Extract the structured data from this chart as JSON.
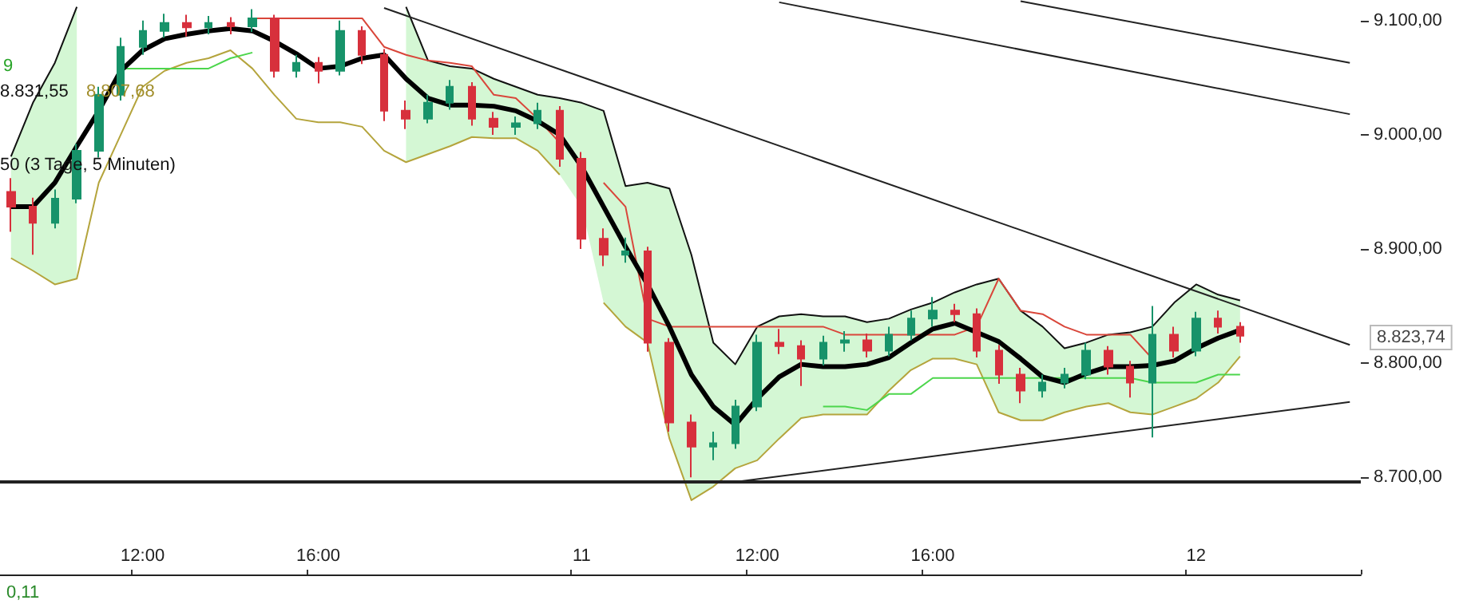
{
  "chart_data": {
    "type": "candlestick",
    "categories": [
      null,
      null,
      null,
      null,
      null,
      null,
      "12:00",
      null,
      null,
      null,
      null,
      null,
      null,
      null,
      "16:00",
      null,
      null,
      null,
      null,
      null,
      null,
      null,
      null,
      null,
      null,
      null,
      "11",
      null,
      null,
      null,
      null,
      null,
      null,
      null,
      "12:00",
      null,
      null,
      null,
      null,
      null,
      null,
      null,
      "16:00",
      null,
      null,
      null,
      null,
      null,
      null,
      null,
      null,
      null,
      null,
      null,
      "12",
      null,
      null,
      null,
      null,
      null,
      null,
      null
    ],
    "ohlc": [
      [
        8950,
        8962,
        8915,
        8937
      ],
      [
        8937,
        8945,
        8895,
        8923
      ],
      [
        8923,
        8952,
        8918,
        8944
      ],
      [
        8944,
        8992,
        8940,
        8986
      ],
      [
        8986,
        9042,
        8980,
        9035
      ],
      [
        9035,
        9085,
        9030,
        9077
      ],
      [
        9077,
        9100,
        9070,
        9091
      ],
      [
        9091,
        9106,
        9085,
        9098
      ],
      [
        9098,
        9105,
        9086,
        9094
      ],
      [
        9094,
        9104,
        9088,
        9098
      ],
      [
        9098,
        9103,
        9088,
        9095
      ],
      [
        9095,
        9110,
        9090,
        9102
      ],
      [
        9102,
        9105,
        9050,
        9056
      ],
      [
        9056,
        9070,
        9050,
        9063
      ],
      [
        9063,
        9068,
        9045,
        9056
      ],
      [
        9056,
        9100,
        9052,
        9091
      ],
      [
        9091,
        9095,
        9062,
        9070
      ],
      [
        9070,
        9075,
        9012,
        9021
      ],
      [
        9021,
        9030,
        9005,
        9014
      ],
      [
        9014,
        9035,
        9010,
        9028
      ],
      [
        9028,
        9048,
        9022,
        9042
      ],
      [
        9042,
        9046,
        9008,
        9014
      ],
      [
        9014,
        9020,
        9000,
        9007
      ],
      [
        9007,
        9016,
        9000,
        9010
      ],
      [
        9010,
        9028,
        9005,
        9021
      ],
      [
        9021,
        9025,
        8972,
        8979
      ],
      [
        8979,
        8985,
        8900,
        8909
      ],
      [
        8909,
        8918,
        8885,
        8895
      ],
      [
        8895,
        8910,
        8888,
        8898
      ],
      [
        8898,
        8902,
        8810,
        8818
      ],
      [
        8818,
        8822,
        8740,
        8748
      ],
      [
        8748,
        8755,
        8700,
        8727
      ],
      [
        8727,
        8740,
        8715,
        8730
      ],
      [
        8730,
        8768,
        8725,
        8762
      ],
      [
        8762,
        8825,
        8758,
        8818
      ],
      [
        8818,
        8830,
        8808,
        8815
      ],
      [
        8815,
        8820,
        8780,
        8804
      ],
      [
        8804,
        8824,
        8798,
        8818
      ],
      [
        8818,
        8828,
        8810,
        8820
      ],
      [
        8820,
        8826,
        8805,
        8811
      ],
      [
        8811,
        8832,
        8806,
        8825
      ],
      [
        8825,
        8846,
        8820,
        8839
      ],
      [
        8839,
        8858,
        8832,
        8846
      ],
      [
        8846,
        8852,
        8836,
        8843
      ],
      [
        8843,
        8848,
        8805,
        8811
      ],
      [
        8811,
        8816,
        8782,
        8790
      ],
      [
        8790,
        8796,
        8765,
        8776
      ],
      [
        8776,
        8790,
        8770,
        8783
      ],
      [
        8783,
        8796,
        8778,
        8790
      ],
      [
        8790,
        8818,
        8786,
        8811
      ],
      [
        8811,
        8815,
        8790,
        8797
      ],
      [
        8797,
        8802,
        8770,
        8783
      ],
      [
        8783,
        8850,
        8735,
        8825
      ],
      [
        8825,
        8832,
        8805,
        8811
      ],
      [
        8811,
        8845,
        8806,
        8839
      ],
      [
        8839,
        8846,
        8826,
        8832
      ],
      [
        8832,
        8836,
        8818,
        8824
      ],
      null,
      null,
      null,
      null,
      null
    ],
    "colors": [
      "#d7303c",
      "#d7303c",
      "#17936a",
      "#17936a",
      "#17936a",
      "#17936a",
      "#17936a",
      "#17936a",
      "#d7303c",
      "#17936a",
      "#d7303c",
      "#17936a",
      "#d7303c",
      "#17936a",
      "#d7303c",
      "#17936a",
      "#d7303c",
      "#d7303c",
      "#d7303c",
      "#17936a",
      "#17936a",
      "#d7303c",
      "#d7303c",
      "#17936a",
      "#17936a",
      "#d7303c",
      "#d7303c",
      "#d7303c",
      "#17936a",
      "#d7303c",
      "#d7303c",
      "#d7303c",
      "#17936a",
      "#17936a",
      "#17936a",
      "#d7303c",
      "#d7303c",
      "#17936a",
      "#17936a",
      "#d7303c",
      "#17936a",
      "#17936a",
      "#17936a",
      "#d7303c",
      "#d7303c",
      "#d7303c",
      "#d7303c",
      "#17936a",
      "#17936a",
      "#17936a",
      "#d7303c",
      "#d7303c",
      "#17936a",
      "#d7303c",
      "#17936a",
      "#d7303c",
      "#d7303c",
      null,
      null,
      null,
      null,
      null
    ],
    "series": [
      {
        "type": "line",
        "color": "#000000",
        "values": [
          8937,
          8937,
          8958,
          8990,
          9021,
          9056,
          9074,
          9084,
          9088,
          9091,
          9093,
          9091,
          9082,
          9071,
          9058,
          9060,
          9067,
          9070,
          9049,
          9032,
          9026,
          9026,
          9025,
          9021,
          9012,
          9000,
          8972,
          8937,
          8902,
          8869,
          8832,
          8790,
          8762,
          8746,
          8769,
          8788,
          8799,
          8797,
          8797,
          8799,
          8805,
          8818,
          8830,
          8835,
          8827,
          8819,
          8804,
          8788,
          8783,
          8791,
          8797,
          8797,
          8798,
          8802,
          8813,
          8822,
          8829,
          null,
          null,
          null,
          null,
          null
        ],
        "lower": [
          8892,
          8881,
          8869,
          8874,
          null,
          null,
          null,
          null,
          null,
          null,
          null,
          null,
          null,
          null,
          null,
          null,
          null,
          null,
          8976,
          8983,
          8990,
          8998,
          8997,
          8997,
          8986,
          8965,
          8937,
          8853,
          8832,
          8818,
          8734,
          8680,
          8692,
          8708,
          8715,
          8734,
          8752,
          8755,
          8755,
          8755,
          8776,
          8794,
          8804,
          8804,
          8799,
          8757,
          8750,
          8750,
          8757,
          8762,
          8765,
          8757,
          8755,
          8762,
          8769,
          8783,
          8806,
          null,
          null,
          null,
          null,
          null
        ],
        "upper": [
          8981,
          9028,
          9063,
          9112,
          null,
          null,
          null,
          null,
          null,
          null,
          null,
          null,
          null,
          null,
          null,
          null,
          null,
          null,
          9112,
          9065,
          9060,
          9058,
          9049,
          9042,
          9035,
          9032,
          9028,
          9021,
          8955,
          8958,
          8953,
          8895,
          8818,
          8799,
          8832,
          8841,
          8843,
          8841,
          8841,
          8836,
          8839,
          8847,
          8853,
          8862,
          8869,
          8874,
          8846,
          8832,
          8813,
          8818,
          8825,
          8827,
          8832,
          8853,
          8869,
          8860,
          8855,
          null,
          null,
          null,
          null,
          null
        ]
      },
      {
        "type": "line",
        "color": "#b4a43c",
        "values": [
          8892,
          8881,
          8869,
          8874,
          8958,
          9000,
          9042,
          9056,
          9063,
          9067,
          9074,
          9058,
          9035,
          9014,
          9011,
          9011,
          9007,
          8986,
          8976,
          8983,
          8990,
          8998,
          8997,
          8997,
          8986,
          8965,
          null,
          8853,
          8832,
          8818,
          8734,
          8680,
          8692,
          8708,
          8715,
          8734,
          8752,
          8755,
          8755,
          8755,
          8776,
          8794,
          8804,
          8804,
          8799,
          8757,
          8750,
          8750,
          8757,
          8762,
          8765,
          8757,
          8755,
          8762,
          8769,
          8783,
          8806,
          null,
          null,
          null,
          null,
          null
        ]
      },
      {
        "type": "line",
        "color": "#111111",
        "values": [
          8981,
          9028,
          9063,
          9112,
          null,
          null,
          null,
          null,
          null,
          null,
          null,
          null,
          null,
          null,
          null,
          null,
          null,
          null,
          9112,
          9065,
          9060,
          9058,
          9049,
          9042,
          9035,
          9032,
          9028,
          9021,
          8955,
          8958,
          8953,
          8895,
          8818,
          8799,
          8832,
          8841,
          8843,
          8841,
          8841,
          8836,
          8839,
          8847,
          8853,
          8862,
          8869,
          8874,
          8846,
          8832,
          8813,
          8818,
          8825,
          8827,
          8832,
          8853,
          8869,
          8860,
          8855,
          null,
          null,
          null,
          null,
          null
        ]
      },
      {
        "type": "line",
        "color": "#d9463a",
        "values": [
          null,
          null,
          null,
          null,
          null,
          null,
          null,
          null,
          null,
          null,
          null,
          9102,
          9102,
          9102,
          9102,
          9102,
          9102,
          9077,
          9070,
          9065,
          9063,
          9060,
          9035,
          9032,
          9014,
          8993,
          null,
          8958,
          8937,
          8839,
          8832,
          8832,
          8832,
          8832,
          8832,
          8832,
          8832,
          8832,
          8825,
          8825,
          8825,
          8825,
          8825,
          8825,
          8832,
          8874,
          8846,
          8843,
          8832,
          8825,
          8825,
          8825,
          8804,
          null,
          null,
          null,
          null,
          null,
          null,
          null,
          null,
          null
        ]
      },
      {
        "type": "line",
        "color": "#4cd64c",
        "values": [
          null,
          null,
          null,
          null,
          null,
          9058,
          9058,
          9058,
          9058,
          9058,
          9067,
          9072,
          null,
          null,
          null,
          null,
          null,
          null,
          null,
          null,
          null,
          null,
          null,
          null,
          null,
          null,
          null,
          null,
          null,
          null,
          null,
          null,
          null,
          null,
          null,
          null,
          null,
          8762,
          8762,
          8759,
          8773,
          8773,
          8787,
          8787,
          8787,
          8787,
          8787,
          8787,
          8787,
          8787,
          8787,
          8787,
          8783,
          8783,
          8783,
          8790,
          8790,
          null,
          null,
          null,
          null,
          null
        ]
      },
      {
        "type": "line",
        "color": "#222222",
        "values": [
          null,
          null,
          null,
          null,
          null,
          null,
          null,
          null,
          null,
          null,
          null,
          null,
          null,
          null,
          null,
          null,
          null,
          9111,
          null,
          null,
          null,
          null,
          null,
          null,
          null,
          null,
          null,
          null,
          null,
          null,
          null,
          null,
          null,
          null,
          null,
          null,
          null,
          null,
          null,
          null,
          null,
          null,
          null,
          null,
          null,
          null,
          null,
          null,
          null,
          null,
          null,
          null,
          null,
          null,
          null,
          null,
          null,
          null,
          null,
          null,
          null,
          8816
        ]
      },
      {
        "type": "line",
        "color": "#222222",
        "values": [
          null,
          null,
          null,
          null,
          null,
          null,
          null,
          null,
          null,
          null,
          null,
          null,
          null,
          null,
          null,
          null,
          null,
          null,
          null,
          null,
          null,
          null,
          null,
          null,
          null,
          null,
          null,
          null,
          null,
          null,
          null,
          null,
          null,
          null,
          null,
          null,
          null,
          null,
          null,
          null,
          null,
          null,
          null,
          null,
          null,
          null,
          9117,
          null,
          null,
          null,
          null,
          null,
          null,
          null,
          null,
          null,
          null,
          null,
          null,
          null,
          null,
          9063
        ]
      },
      {
        "type": "line",
        "color": "#222222",
        "values": [
          null,
          null,
          null,
          null,
          null,
          null,
          null,
          null,
          null,
          null,
          null,
          null,
          null,
          null,
          null,
          null,
          null,
          null,
          null,
          null,
          null,
          null,
          null,
          null,
          null,
          null,
          null,
          null,
          null,
          null,
          null,
          null,
          null,
          null,
          null,
          9116,
          null,
          null,
          null,
          null,
          null,
          null,
          null,
          null,
          null,
          null,
          null,
          null,
          null,
          null,
          null,
          null,
          null,
          null,
          null,
          null,
          null,
          null,
          null,
          null,
          null,
          9018
        ]
      },
      {
        "type": "line",
        "color": "#222222",
        "values": [
          null,
          null,
          null,
          null,
          null,
          null,
          null,
          null,
          null,
          null,
          null,
          null,
          null,
          null,
          null,
          null,
          null,
          null,
          null,
          null,
          null,
          null,
          null,
          null,
          null,
          null,
          null,
          null,
          null,
          null,
          null,
          null,
          null,
          8696,
          null,
          null,
          null,
          null,
          null,
          null,
          null,
          null,
          null,
          null,
          null,
          null,
          null,
          null,
          null,
          null,
          null,
          null,
          null,
          null,
          null,
          null,
          null,
          null,
          null,
          null,
          null,
          8766
        ]
      }
    ],
    "ref_lines": [
      {
        "axis": "y",
        "value": 8696,
        "color": "#222222"
      }
    ],
    "ylim": [
      8615,
      9118
    ],
    "yticks": [
      {
        "value": 8700,
        "label": "8.700,00"
      },
      {
        "value": 8800,
        "label": "8.800,00"
      },
      {
        "value": 8900,
        "label": "8.900,00"
      },
      {
        "value": 9000,
        "label": "9.000,00"
      },
      {
        "value": 9100,
        "label": "9.100,00"
      }
    ],
    "annotations": [
      "9",
      "8.831,55",
      "8.807,68",
      "50 (3 Tage, 5 Minuten)",
      "0,11",
      "8.823,74"
    ],
    "grid": false,
    "marker": "none"
  }
}
